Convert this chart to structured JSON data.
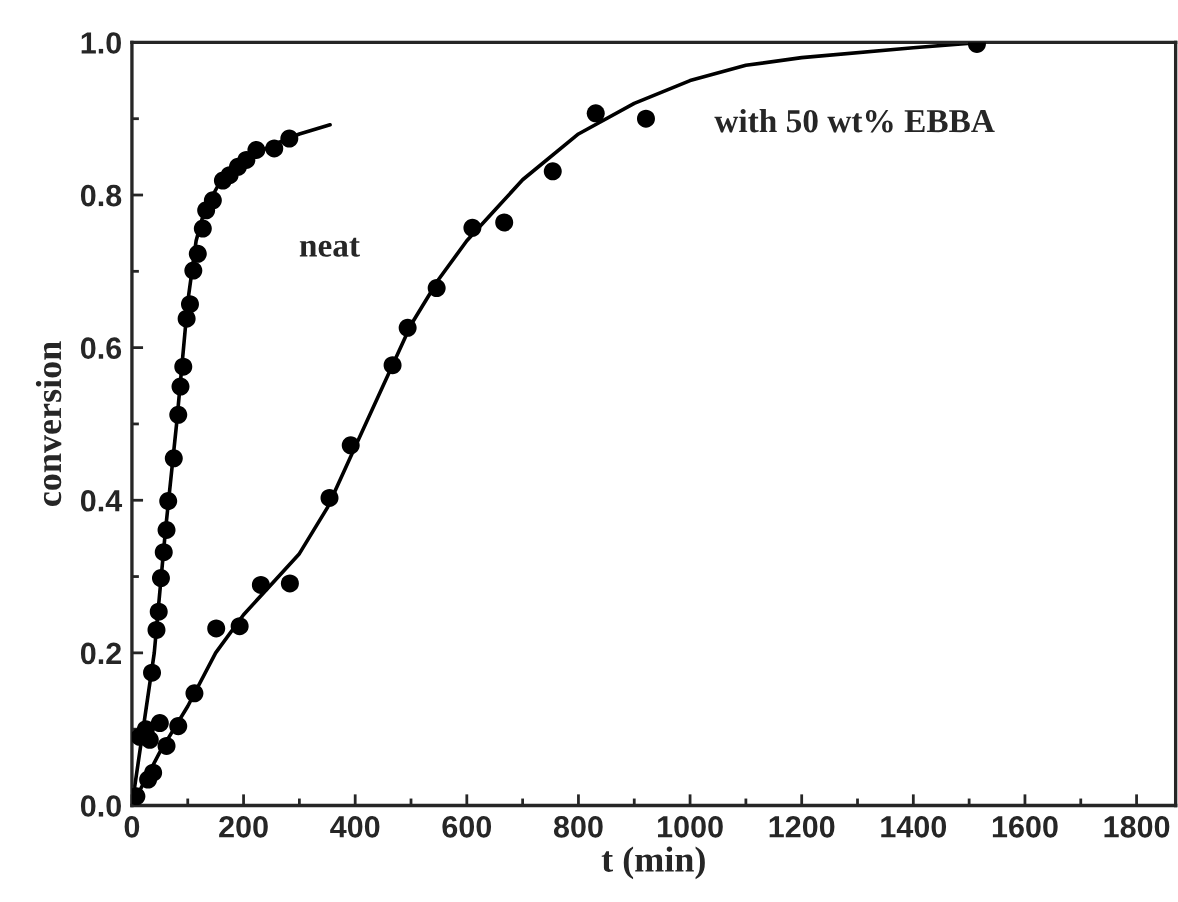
{
  "chart_data": {
    "type": "scatter",
    "xlabel": "t (min)",
    "ylabel": "conversion",
    "xlim": [
      0,
      1870
    ],
    "ylim": [
      0,
      1.0
    ],
    "xticks": [
      0,
      {
        "value": 100,
        "label": null
      },
      200,
      {
        "value": 300,
        "label": null
      },
      400,
      {
        "value": 500,
        "label": null
      },
      600,
      {
        "value": 700,
        "label": null
      },
      800,
      {
        "value": 900,
        "label": null
      },
      1000,
      {
        "value": 1100,
        "label": null
      },
      1200,
      {
        "value": 1300,
        "label": null
      },
      1400,
      {
        "value": 1500,
        "label": null
      },
      1600,
      {
        "value": 1700,
        "label": null
      },
      1800
    ],
    "yticks": [
      {
        "value": 0,
        "label": "0.0"
      },
      {
        "value": 0.1,
        "label": null
      },
      0.2,
      {
        "value": 0.3,
        "label": null
      },
      0.4,
      {
        "value": 0.5,
        "label": null
      },
      0.6,
      {
        "value": 0.7,
        "label": null
      },
      0.8,
      {
        "value": 0.9,
        "label": null
      },
      {
        "value": 1.0,
        "label": "1.0"
      }
    ],
    "grid": false,
    "legend": false,
    "marker": "circle",
    "series": [
      {
        "color": "#000000",
        "x": [
          8,
          14,
          25,
          36,
          44,
          48,
          52,
          57,
          62,
          65,
          75,
          83,
          87,
          92,
          98,
          104,
          110,
          118,
          127,
          133,
          145,
          163,
          175,
          190,
          205,
          223,
          255,
          282
        ],
        "values": [
          0.012,
          0.09,
          0.1,
          0.174,
          0.23,
          0.254,
          0.298,
          0.332,
          0.361,
          0.399,
          0.455,
          0.512,
          0.549,
          0.575,
          0.638,
          0.657,
          0.701,
          0.723,
          0.756,
          0.78,
          0.793,
          0.819,
          0.826,
          0.837,
          0.846,
          0.859,
          0.861,
          0.874
        ]
      },
      {
        "type": "line",
        "color": "#000000",
        "marker": "none",
        "x": [
          0,
          20,
          40,
          60,
          80,
          100,
          115,
          130,
          160,
          200,
          250,
          300,
          355
        ],
        "values": [
          0,
          0.1,
          0.2,
          0.36,
          0.5,
          0.66,
          0.74,
          0.78,
          0.82,
          0.845,
          0.865,
          0.88,
          0.892
        ]
      },
      {
        "color": "#000000",
        "x": [
          29,
          32,
          38,
          50,
          62,
          83,
          112,
          151,
          193,
          231,
          283,
          354,
          392,
          467,
          494,
          546,
          610,
          667,
          754,
          831,
          921,
          1514
        ],
        "values": [
          0.034,
          0.086,
          0.043,
          0.108,
          0.078,
          0.104,
          0.147,
          0.232,
          0.235,
          0.289,
          0.291,
          0.403,
          0.472,
          0.577,
          0.626,
          0.678,
          0.757,
          0.764,
          0.831,
          0.907,
          0.9,
          0.998
        ]
      },
      {
        "type": "line",
        "color": "#000000",
        "marker": "none",
        "x": [
          0,
          50,
          100,
          150,
          200,
          250,
          300,
          350,
          400,
          450,
          500,
          550,
          600,
          650,
          700,
          800,
          900,
          1000,
          1100,
          1200,
          1400,
          1520
        ],
        "values": [
          0,
          0.07,
          0.13,
          0.2,
          0.25,
          0.29,
          0.33,
          0.39,
          0.47,
          0.55,
          0.63,
          0.69,
          0.74,
          0.78,
          0.82,
          0.88,
          0.92,
          0.95,
          0.97,
          0.98,
          0.993,
          1.0
        ]
      }
    ],
    "annotations": [
      "neat",
      "with 50 wt% EBBA"
    ]
  }
}
